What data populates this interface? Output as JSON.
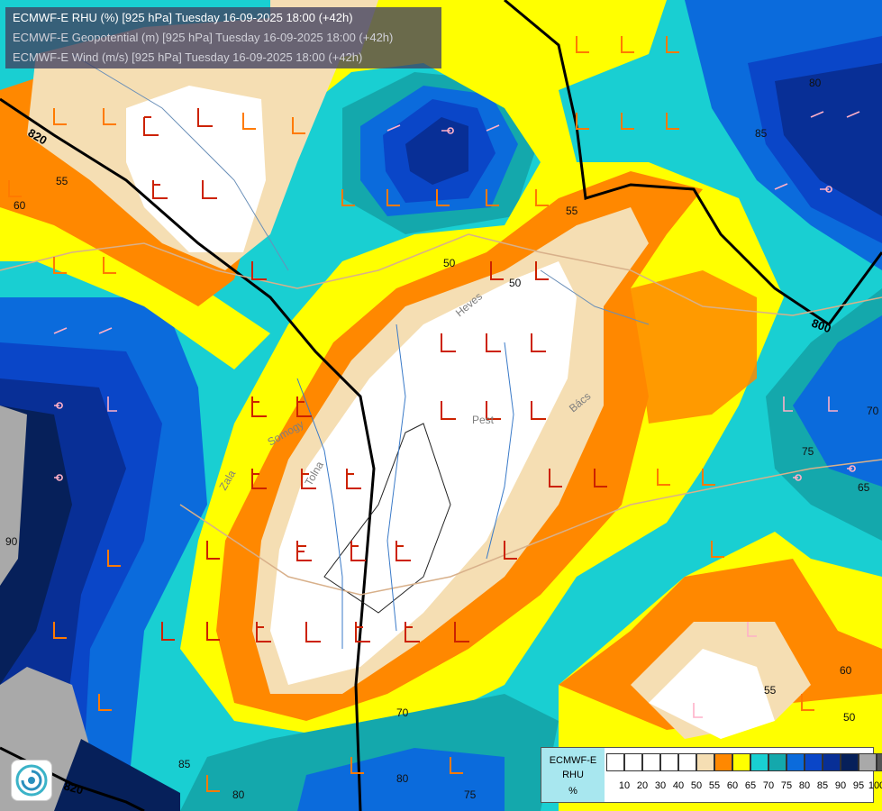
{
  "header": {
    "line1": "ECMWF-E RHU (%) [925 hPa] Tuesday 16-09-2025 18:00 (+42h)",
    "line2": "ECMWF-E Geopotential (m) [925 hPa] Tuesday 16-09-2025 18:00 (+42h)",
    "line3": "ECMWF-E Wind (m/s) [925 hPa] Tuesday 16-09-2025 18:00 (+42h)"
  },
  "geopotential_labels": [
    "820",
    "800",
    "820"
  ],
  "rh_contour_labels": [
    "55",
    "60",
    "55",
    "50",
    "80",
    "85",
    "70",
    "75",
    "65",
    "60",
    "50",
    "55",
    "70",
    "85",
    "80",
    "90",
    "75",
    "50",
    "80"
  ],
  "place_labels": [
    "Pest",
    "Bács",
    "Zala",
    "Somogy",
    "Tolna",
    "Heves"
  ],
  "legend": {
    "title": "ECMWF-E",
    "variable": "RHU",
    "unit": "%",
    "ticks": [
      "10",
      "20",
      "30",
      "40",
      "50",
      "55",
      "60",
      "65",
      "70",
      "75",
      "80",
      "85",
      "90",
      "95",
      "100"
    ],
    "colors": [
      "#ffffff",
      "#ffffff",
      "#ffffff",
      "#ffffff",
      "#ffffff",
      "#f5deb3",
      "#ff8800",
      "#ffff00",
      "#19cfd2",
      "#14a8ac",
      "#0b6bdc",
      "#0a46c8",
      "#082f96",
      "#06205a",
      "#a9a9a9",
      "#555555"
    ]
  },
  "palette": {
    "rh_lt50": "#ffffff",
    "rh_50_55": "#f5deb3",
    "rh_55_60": "#ff8800",
    "rh_60_65": "#ffff00",
    "rh_65_70": "#19cfd2",
    "rh_70_75": "#14a8ac",
    "rh_75_80": "#0b6bdc",
    "rh_80_85": "#0a46c8",
    "rh_85_90": "#082f96",
    "rh_90_95": "#06205a",
    "rh_95_100": "#a9a9a9",
    "wind_barb_dry": "#cc2200",
    "wind_barb_moist": "#ff8888",
    "wind_barb_wet": "#ffb0c8"
  },
  "logo_icon": "ecmwf-swirl-icon"
}
